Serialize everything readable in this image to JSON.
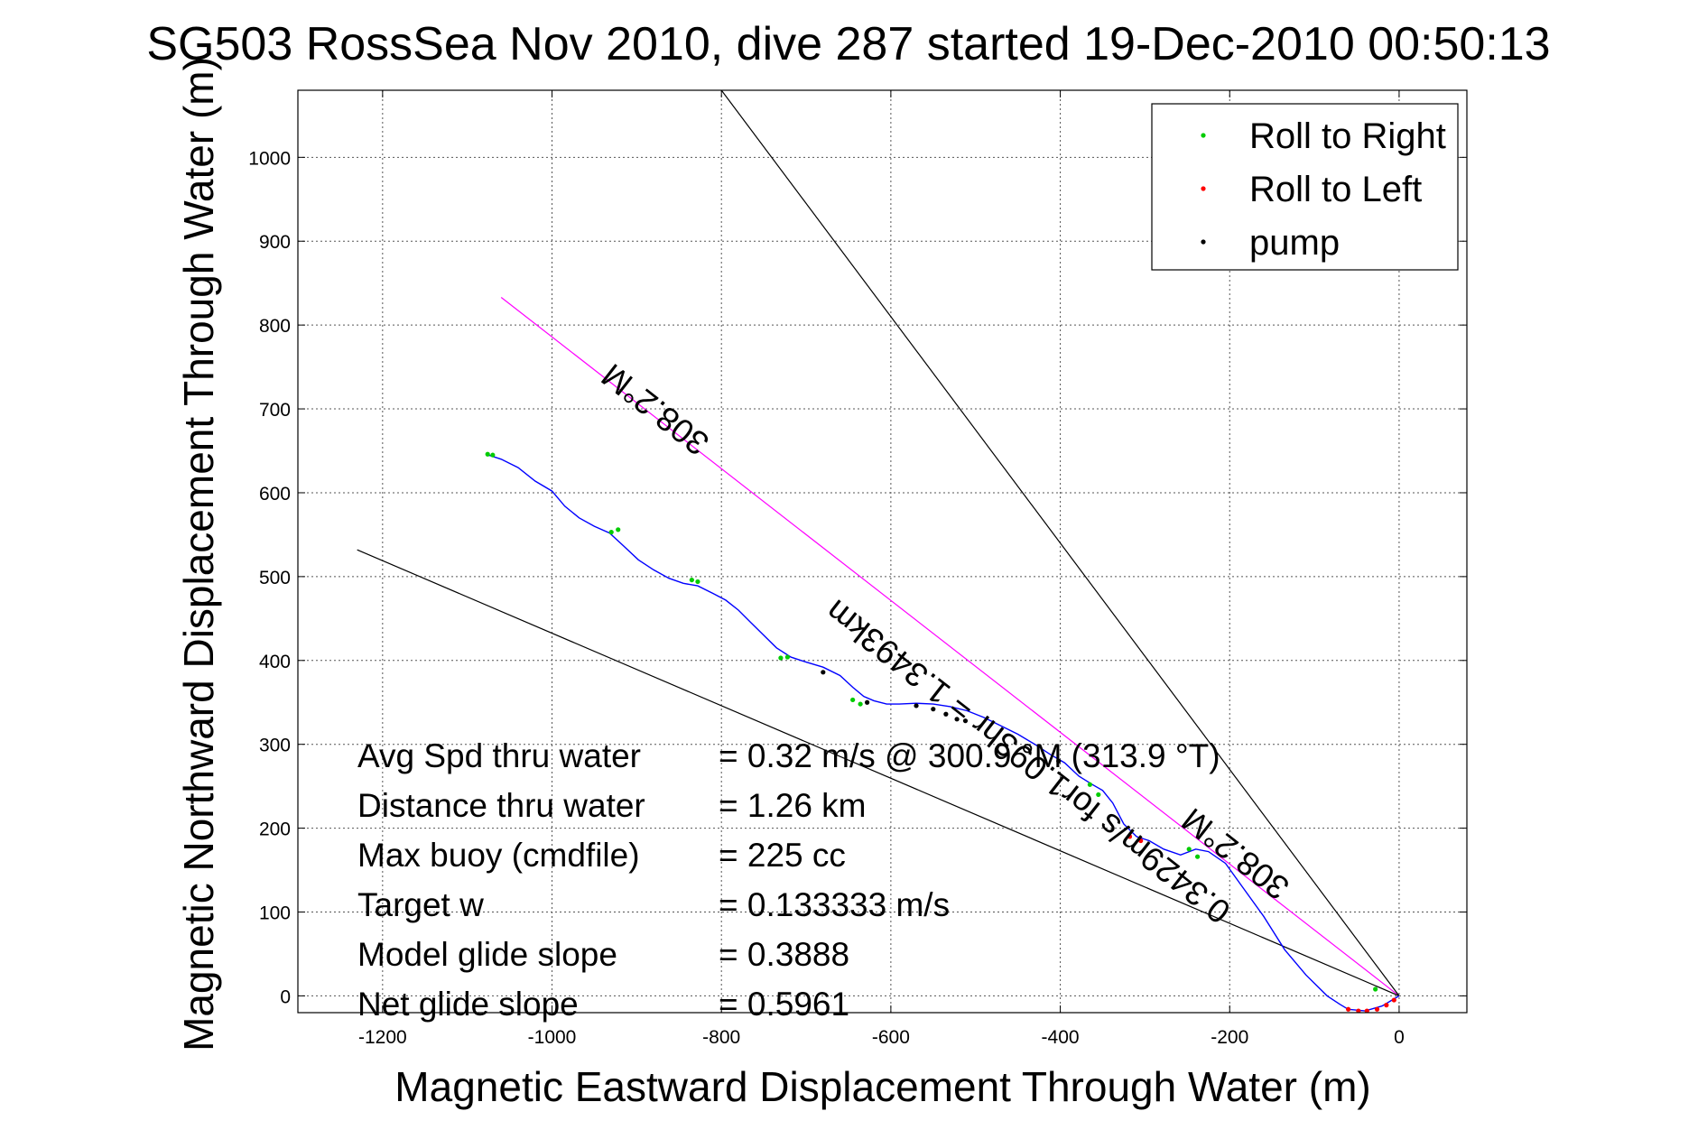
{
  "chart_data": {
    "type": "line",
    "title": "SG503 RossSea Nov 2010, dive 287 started 19-Dec-2010 00:50:13",
    "xlabel": "Magnetic Eastward Displacement Through Water (m)",
    "ylabel": "Magnetic Northward Displacement Through Water (m)",
    "xlim": [
      -1300,
      80
    ],
    "ylim": [
      -20,
      1080
    ],
    "xticks": [
      -1200,
      -1000,
      -800,
      -600,
      -400,
      -200,
      0
    ],
    "yticks": [
      0,
      100,
      200,
      300,
      400,
      500,
      600,
      700,
      800,
      900,
      1000
    ],
    "grid": true,
    "legend_position": "top-right",
    "legend": [
      {
        "label": "Roll to Right",
        "color": "#00cc00"
      },
      {
        "label": "Roll to Left",
        "color": "#ff0000"
      },
      {
        "label": "pump",
        "color": "#000000"
      }
    ],
    "series": [
      {
        "color": "#0000ff",
        "x": [
          0,
          -20,
          -40,
          -60,
          -70,
          -85,
          -110,
          -135,
          -160,
          -185,
          -205,
          -225,
          -240,
          -258,
          -278,
          -295,
          -310,
          -325,
          -338,
          -350,
          -362,
          -378,
          -395,
          -412,
          -430,
          -450,
          -470,
          -490,
          -510,
          -530,
          -550,
          -570,
          -590,
          -605,
          -620,
          -632,
          -645,
          -660,
          -680,
          -700,
          -718,
          -735,
          -750,
          -765,
          -780,
          -795,
          -810,
          -828,
          -845,
          -862,
          -880,
          -898,
          -915,
          -932,
          -950,
          -968,
          -985,
          -1000,
          -1020,
          -1040,
          -1060,
          -1075
        ],
        "y": [
          0,
          -12,
          -18,
          -16,
          -10,
          0,
          25,
          55,
          95,
          130,
          158,
          172,
          175,
          168,
          175,
          185,
          190,
          205,
          230,
          245,
          252,
          262,
          278,
          288,
          300,
          312,
          322,
          332,
          340,
          345,
          348,
          349,
          348,
          348,
          352,
          357,
          368,
          382,
          392,
          398,
          404,
          415,
          430,
          445,
          460,
          472,
          480,
          489,
          492,
          498,
          508,
          520,
          536,
          552,
          560,
          570,
          584,
          602,
          614,
          630,
          640,
          645
        ]
      }
    ],
    "roll_right_points": [
      [
        -1070,
        645
      ],
      [
        -1076,
        646
      ],
      [
        -930,
        553
      ],
      [
        -922,
        556
      ],
      [
        -835,
        496
      ],
      [
        -828,
        494
      ],
      [
        -730,
        403
      ],
      [
        -722,
        404
      ],
      [
        -645,
        353
      ],
      [
        -636,
        348
      ],
      [
        -365,
        252
      ],
      [
        -355,
        240
      ],
      [
        -248,
        175
      ],
      [
        -238,
        166
      ],
      [
        -28,
        8
      ]
    ],
    "roll_left_points": [
      [
        -318,
        190
      ],
      [
        -305,
        185
      ],
      [
        -60,
        -16
      ],
      [
        -48,
        -18
      ],
      [
        -38,
        -18
      ],
      [
        -26,
        -16
      ],
      [
        -15,
        -11
      ],
      [
        -6,
        -5
      ]
    ],
    "pump_points": [
      [
        -680,
        386
      ],
      [
        -628,
        350
      ],
      [
        -570,
        346
      ],
      [
        -550,
        342
      ],
      [
        -535,
        336
      ],
      [
        -522,
        330
      ],
      [
        -512,
        328
      ],
      [
        -402,
        280
      ]
    ],
    "reference_lines": [
      {
        "name": "bearing-line",
        "color": "#ff00ff",
        "x": [
          0,
          -1060
        ],
        "y": [
          0,
          833
        ]
      },
      {
        "name": "envelope-line-upper",
        "color": "#000000",
        "x": [
          0,
          -800
        ],
        "y": [
          0,
          1080
        ]
      },
      {
        "name": "envelope-line-lower",
        "color": "#000000",
        "x": [
          0,
          -1230
        ],
        "y": [
          0,
          532
        ]
      }
    ],
    "slope_labels": [
      {
        "text": "308.2°M",
        "x": -870,
        "y": 710,
        "angle": 218
      },
      {
        "text": "0.3429m/s for1.093hr = 1.3493km",
        "x": -430,
        "y": 290,
        "angle": 218
      },
      {
        "text": "308.2°M",
        "x": -185,
        "y": 180,
        "angle": 218
      }
    ],
    "annotations": [
      {
        "label": "Avg Spd thru water",
        "value": "=  0.32 m/s @ 300.9 °M (313.9 °T)"
      },
      {
        "label": "Distance thru water",
        "value": "=  1.26 km"
      },
      {
        "label": "Max buoy (cmdfile)",
        "value": "= 225 cc"
      },
      {
        "label": "Target w",
        "value": "= 0.133333 m/s"
      },
      {
        "label": "Model glide slope",
        "value": "= 0.3888"
      },
      {
        "label": "Net glide slope",
        "value": "= 0.5961"
      }
    ]
  }
}
